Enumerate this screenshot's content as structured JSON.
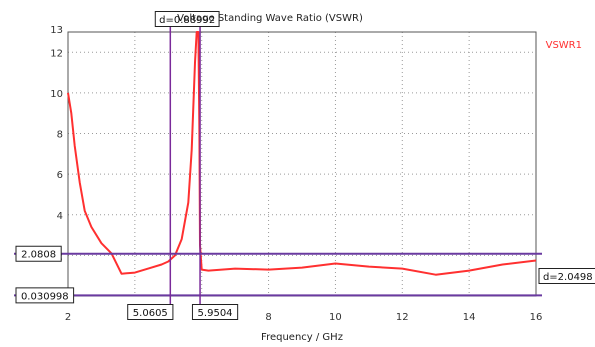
{
  "chart_data": {
    "type": "line",
    "title": "Voltage Standing Wave Ratio (VSWR)",
    "xlabel": "Frequency / GHz",
    "ylabel": "",
    "xlim": [
      2,
      16
    ],
    "ylim": [
      0,
      13
    ],
    "x_ticks": [
      "2",
      "8",
      "10",
      "12",
      "14",
      "16"
    ],
    "y_ticks": [
      "2",
      "4",
      "6",
      "8",
      "10",
      "12",
      "13"
    ],
    "grid": true,
    "legend_position": "top-right",
    "series": [
      {
        "name": "VSWR1",
        "color": "#ff3030",
        "x": [
          2.0,
          2.1,
          2.2,
          2.35,
          2.5,
          2.7,
          3.0,
          3.3,
          3.6,
          4.0,
          4.4,
          4.8,
          5.0,
          5.2,
          5.4,
          5.6,
          5.7,
          5.8,
          5.85,
          5.9,
          5.93,
          5.95,
          6.0,
          6.2,
          6.6,
          7.0,
          8.0,
          9.0,
          10.0,
          11.0,
          12.0,
          13.0,
          14.0,
          15.0,
          16.0
        ],
        "y": [
          10.0,
          9.0,
          7.4,
          5.6,
          4.2,
          3.4,
          2.6,
          2.1,
          1.1,
          1.15,
          1.35,
          1.55,
          1.7,
          2.0,
          2.8,
          4.6,
          7.2,
          11.5,
          13.0,
          13.0,
          8.0,
          2.5,
          1.3,
          1.25,
          1.3,
          1.35,
          1.3,
          1.4,
          1.6,
          1.45,
          1.35,
          1.05,
          1.25,
          1.55,
          1.75
        ]
      }
    ],
    "markers": {
      "vertical": [
        {
          "label": "5.0605",
          "x": 5.0605
        },
        {
          "label": "5.9504",
          "x": 5.9504
        }
      ],
      "horizontal": [
        {
          "label": "2.0808",
          "y": 2.0808
        },
        {
          "label": "0.030998",
          "y": 0.030998
        }
      ],
      "delta_x_label": "d=0.88992",
      "delta_y_label": "d=2.0498"
    }
  },
  "colors": {
    "series": "#ff3030",
    "marker_v": "#7a2a9a",
    "marker_h": "#6a3aa0",
    "grid": "#9a9a9a",
    "axis": "#555555"
  }
}
